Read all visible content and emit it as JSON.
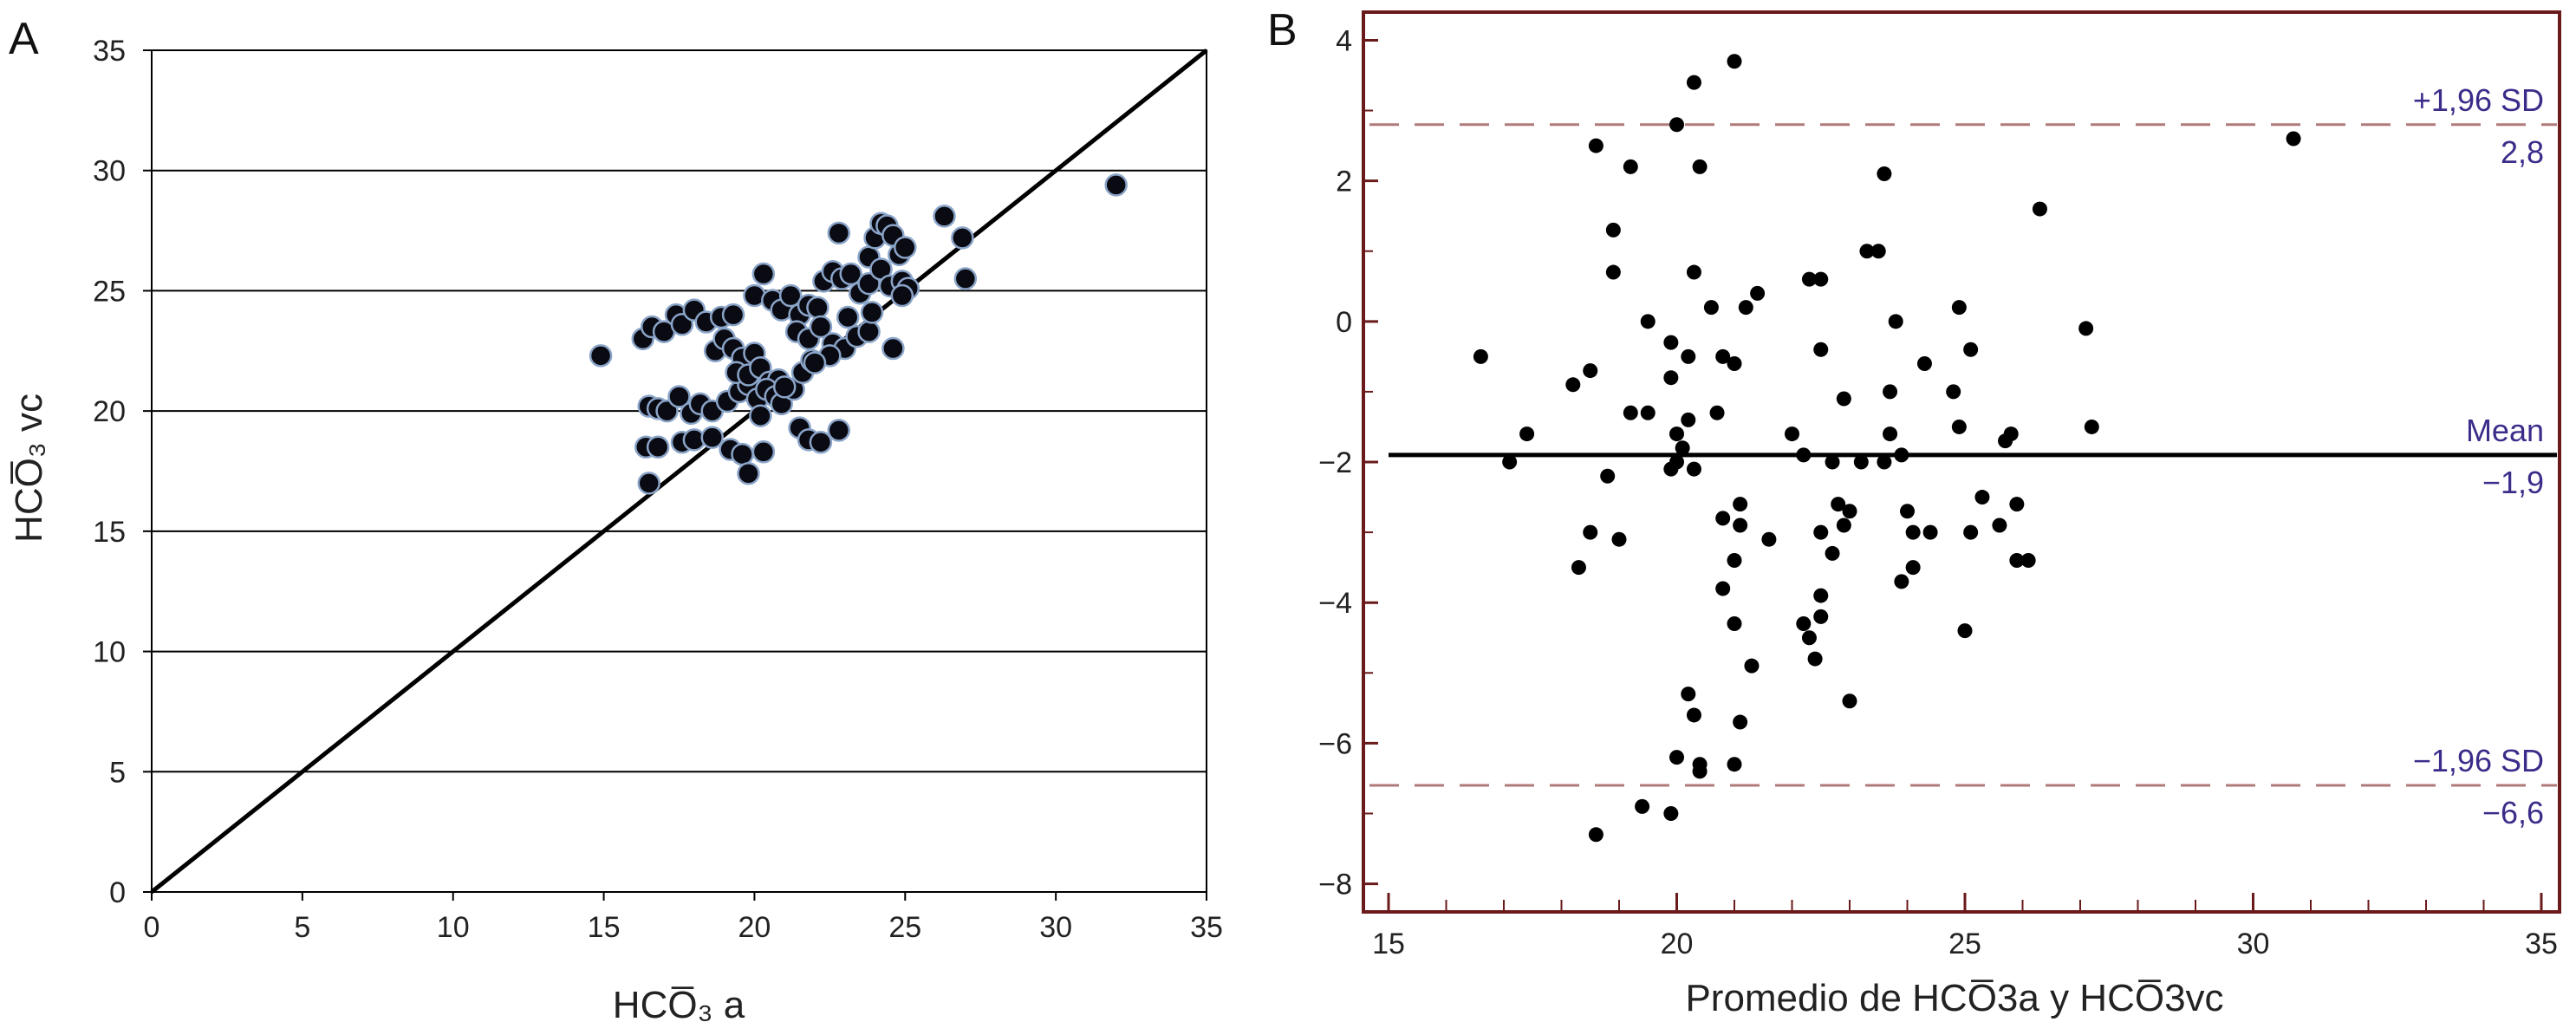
{
  "chart_data": [
    {
      "panel_label": "A",
      "type": "scatter",
      "xlabel": "HCO̅₃ a",
      "ylabel": "HCO̅₃ vc",
      "xlim": [
        0,
        35
      ],
      "ylim": [
        0,
        35
      ],
      "x_ticks": [
        "0",
        "5",
        "10",
        "15",
        "20",
        "25",
        "30",
        "35"
      ],
      "y_ticks": [
        "0",
        "5",
        "10",
        "15",
        "20",
        "25",
        "30",
        "35"
      ],
      "grid": "horizontal",
      "identity_line": true,
      "colors": {
        "marker": "#0a0a12",
        "marker_edge": "#8aa4c8",
        "line": "#000000",
        "grid": "#000000"
      },
      "points": [
        [
          14.9,
          22.3
        ],
        [
          16.3,
          23.0
        ],
        [
          16.6,
          23.5
        ],
        [
          17.0,
          23.3
        ],
        [
          17.4,
          24.0
        ],
        [
          17.6,
          23.6
        ],
        [
          18.0,
          24.2
        ],
        [
          18.4,
          23.7
        ],
        [
          18.9,
          23.9
        ],
        [
          19.3,
          24.0
        ],
        [
          16.5,
          20.2
        ],
        [
          16.8,
          20.1
        ],
        [
          17.1,
          20.0
        ],
        [
          17.5,
          20.6
        ],
        [
          17.9,
          19.9
        ],
        [
          18.2,
          20.3
        ],
        [
          18.6,
          20.0
        ],
        [
          19.1,
          20.4
        ],
        [
          19.5,
          20.8
        ],
        [
          19.8,
          21.1
        ],
        [
          16.4,
          18.5
        ],
        [
          16.8,
          18.5
        ],
        [
          17.6,
          18.7
        ],
        [
          18.0,
          18.8
        ],
        [
          18.6,
          18.9
        ],
        [
          19.2,
          18.4
        ],
        [
          19.6,
          18.2
        ],
        [
          19.8,
          17.4
        ],
        [
          20.3,
          18.3
        ],
        [
          16.5,
          17.0
        ],
        [
          18.7,
          22.5
        ],
        [
          19.0,
          23.0
        ],
        [
          19.3,
          22.6
        ],
        [
          19.6,
          22.2
        ],
        [
          20.0,
          22.4
        ],
        [
          19.4,
          21.6
        ],
        [
          19.8,
          21.5
        ],
        [
          20.2,
          21.8
        ],
        [
          20.5,
          21.2
        ],
        [
          20.8,
          21.3
        ],
        [
          20.1,
          20.5
        ],
        [
          20.4,
          20.9
        ],
        [
          20.7,
          20.6
        ],
        [
          20.9,
          20.3
        ],
        [
          21.3,
          20.9
        ],
        [
          21.6,
          21.6
        ],
        [
          21.9,
          22.1
        ],
        [
          20.0,
          24.8
        ],
        [
          20.3,
          25.7
        ],
        [
          20.6,
          24.6
        ],
        [
          20.9,
          24.2
        ],
        [
          21.2,
          24.8
        ],
        [
          21.5,
          24.0
        ],
        [
          21.8,
          24.4
        ],
        [
          22.1,
          24.3
        ],
        [
          22.3,
          25.4
        ],
        [
          22.6,
          25.8
        ],
        [
          22.9,
          25.5
        ],
        [
          23.2,
          25.7
        ],
        [
          23.5,
          24.9
        ],
        [
          21.4,
          23.3
        ],
        [
          21.8,
          23.0
        ],
        [
          22.2,
          23.5
        ],
        [
          22.6,
          22.8
        ],
        [
          23.0,
          22.6
        ],
        [
          23.4,
          23.1
        ],
        [
          23.8,
          23.3
        ],
        [
          22.5,
          22.3
        ],
        [
          21.5,
          19.3
        ],
        [
          21.8,
          18.8
        ],
        [
          22.2,
          18.7
        ],
        [
          22.8,
          19.2
        ],
        [
          22.8,
          27.4
        ],
        [
          23.8,
          26.4
        ],
        [
          24.0,
          27.2
        ],
        [
          24.2,
          27.8
        ],
        [
          24.4,
          27.7
        ],
        [
          24.6,
          27.3
        ],
        [
          24.8,
          26.5
        ],
        [
          25.0,
          26.8
        ],
        [
          23.8,
          25.3
        ],
        [
          24.2,
          25.9
        ],
        [
          24.5,
          25.2
        ],
        [
          24.9,
          25.4
        ],
        [
          25.1,
          25.1
        ],
        [
          24.6,
          22.6
        ],
        [
          23.9,
          24.1
        ],
        [
          26.3,
          28.1
        ],
        [
          26.9,
          27.2
        ],
        [
          27.0,
          25.5
        ],
        [
          32.0,
          29.4
        ],
        [
          24.9,
          24.8
        ],
        [
          20.2,
          19.8
        ],
        [
          21.0,
          21.0
        ],
        [
          22.0,
          22.0
        ],
        [
          23.1,
          23.9
        ]
      ]
    },
    {
      "panel_label": "B",
      "type": "scatter",
      "xlabel": "Promedio de HCO̅3a y HCO̅3vc",
      "ylabel": "",
      "xlim": [
        15,
        35
      ],
      "ylim": [
        -8.4,
        4.4
      ],
      "x_ticks": [
        "15",
        "20",
        "25",
        "30",
        "35"
      ],
      "y_ticks": [
        "4",
        "2",
        "0",
        "−2",
        "−4",
        "−6",
        "−8"
      ],
      "grid": "none",
      "colors": {
        "marker": "#000000",
        "mean_line": "#000000",
        "limit_line": "#b07a7a",
        "frame": "#6a1a1a",
        "annotation": "#3a2d8a"
      },
      "mean": {
        "value": -1.9,
        "label": "Mean",
        "value_label": "−1,9"
      },
      "upper_limit": {
        "value": 2.8,
        "label": "+1,96 SD",
        "value_label": "2,8"
      },
      "lower_limit": {
        "value": -6.6,
        "label": "−1,96 SD",
        "value_label": "−6,6"
      },
      "points": [
        [
          16.6,
          -0.5
        ],
        [
          17.1,
          -2.0
        ],
        [
          17.4,
          -1.6
        ],
        [
          18.2,
          -0.9
        ],
        [
          18.5,
          -0.7
        ],
        [
          18.3,
          -3.5
        ],
        [
          18.5,
          -3.0
        ],
        [
          18.8,
          -2.2
        ],
        [
          19.0,
          -3.1
        ],
        [
          19.2,
          -1.3
        ],
        [
          19.5,
          -1.3
        ],
        [
          18.6,
          2.5
        ],
        [
          18.9,
          1.3
        ],
        [
          18.9,
          0.7
        ],
        [
          19.2,
          2.2
        ],
        [
          19.5,
          0.0
        ],
        [
          19.9,
          -0.3
        ],
        [
          19.9,
          -0.8
        ],
        [
          20.0,
          -1.6
        ],
        [
          20.1,
          -1.8
        ],
        [
          19.9,
          -2.1
        ],
        [
          20.0,
          -2.0
        ],
        [
          20.2,
          -1.4
        ],
        [
          20.2,
          -0.5
        ],
        [
          20.3,
          0.7
        ],
        [
          20.4,
          2.2
        ],
        [
          20.0,
          2.8
        ],
        [
          20.3,
          3.4
        ],
        [
          21.0,
          3.7
        ],
        [
          20.6,
          0.2
        ],
        [
          20.8,
          -0.5
        ],
        [
          21.0,
          -0.6
        ],
        [
          21.2,
          0.2
        ],
        [
          21.4,
          0.4
        ],
        [
          20.7,
          -1.3
        ],
        [
          20.3,
          -2.1
        ],
        [
          20.8,
          -2.8
        ],
        [
          21.1,
          -2.6
        ],
        [
          21.1,
          -2.9
        ],
        [
          21.6,
          -3.1
        ],
        [
          20.8,
          -3.8
        ],
        [
          21.0,
          -3.4
        ],
        [
          21.0,
          -4.3
        ],
        [
          21.3,
          -4.9
        ],
        [
          20.2,
          -5.3
        ],
        [
          20.3,
          -5.6
        ],
        [
          21.1,
          -5.7
        ],
        [
          20.0,
          -6.2
        ],
        [
          20.4,
          -6.3
        ],
        [
          20.4,
          -6.4
        ],
        [
          21.0,
          -6.3
        ],
        [
          19.4,
          -6.9
        ],
        [
          19.9,
          -7.0
        ],
        [
          18.6,
          -7.3
        ],
        [
          22.0,
          -1.6
        ],
        [
          22.2,
          -1.9
        ],
        [
          22.3,
          0.6
        ],
        [
          22.5,
          0.6
        ],
        [
          22.5,
          -0.4
        ],
        [
          22.7,
          -2.0
        ],
        [
          22.9,
          -1.1
        ],
        [
          22.2,
          -4.3
        ],
        [
          22.3,
          -4.5
        ],
        [
          22.5,
          -3.9
        ],
        [
          22.5,
          -4.2
        ],
        [
          22.4,
          -4.8
        ],
        [
          22.7,
          -3.3
        ],
        [
          22.8,
          -2.6
        ],
        [
          22.9,
          -2.9
        ],
        [
          23.0,
          -2.7
        ],
        [
          23.0,
          -5.4
        ],
        [
          22.5,
          -3.0
        ],
        [
          23.5,
          1.0
        ],
        [
          23.7,
          -1.0
        ],
        [
          23.7,
          -1.6
        ],
        [
          23.9,
          -1.9
        ],
        [
          23.8,
          0.0
        ],
        [
          23.6,
          -2.0
        ],
        [
          24.0,
          -2.7
        ],
        [
          24.1,
          -3.0
        ],
        [
          23.9,
          -3.7
        ],
        [
          24.1,
          -3.5
        ],
        [
          24.4,
          -3.0
        ],
        [
          23.6,
          2.1
        ],
        [
          24.3,
          -0.6
        ],
        [
          24.8,
          -1.0
        ],
        [
          24.9,
          0.2
        ],
        [
          25.1,
          -0.4
        ],
        [
          24.9,
          -1.5
        ],
        [
          25.3,
          -2.5
        ],
        [
          25.0,
          -4.4
        ],
        [
          25.1,
          -3.0
        ],
        [
          25.6,
          -2.9
        ],
        [
          25.8,
          -1.6
        ],
        [
          25.7,
          -1.7
        ],
        [
          25.9,
          -2.6
        ],
        [
          25.9,
          -3.4
        ],
        [
          26.1,
          -3.4
        ],
        [
          26.3,
          1.6
        ],
        [
          27.1,
          -0.1
        ],
        [
          27.2,
          -1.5
        ],
        [
          30.7,
          2.6
        ],
        [
          23.3,
          1.0
        ],
        [
          23.2,
          -2.0
        ]
      ]
    }
  ]
}
